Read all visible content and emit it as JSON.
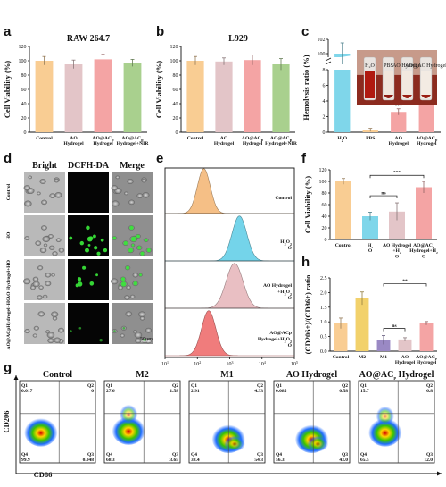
{
  "panels": {
    "a": {
      "label": "a",
      "chart_data": {
        "type": "bar",
        "title": "RAW 264.7",
        "ylabel": "Cell Viability (%)",
        "categories": [
          [
            "Control"
          ],
          [
            "AO",
            "Hydrogel"
          ],
          [
            "AO@AC",
            "Hydrogel"
          ],
          [
            "AO@AC",
            "Hydrogel+NIR"
          ]
        ],
        "values": [
          100,
          95,
          102,
          97
        ],
        "errors": [
          6,
          6,
          7,
          5
        ],
        "ylim": [
          0,
          120
        ],
        "yticks": [
          "0",
          "20",
          "40",
          "60",
          "80",
          "100",
          "120"
        ],
        "colors": [
          "#f9cd93",
          "#e3c5c8",
          "#f4a4a4",
          "#a9d08e"
        ]
      }
    },
    "b": {
      "label": "b",
      "chart_data": {
        "type": "bar",
        "title": "L929",
        "ylabel": "Cell Viability (%)",
        "categories": [
          [
            "Control"
          ],
          [
            "AO",
            "Hydrogel"
          ],
          [
            "AO@AC",
            "Hydrogel"
          ],
          [
            "AO@AC",
            "Hydrogel+NIR"
          ]
        ],
        "values": [
          100,
          99,
          101,
          95
        ],
        "errors": [
          6,
          5,
          7,
          8
        ],
        "ylim": [
          0,
          120
        ],
        "yticks": [
          "0",
          "20",
          "40",
          "60",
          "80",
          "100",
          "120"
        ],
        "colors": [
          "#f9cd93",
          "#e3c5c8",
          "#f4a4a4",
          "#a9d08e"
        ]
      }
    },
    "c": {
      "label": "c",
      "chart_data": {
        "type": "bar",
        "ylabel": "Hemolysis ratio (%)",
        "categories": [
          [
            "H",
            "O"
          ],
          [
            "PBS"
          ],
          [
            "AO",
            "Hydrogel"
          ],
          [
            "AO@AC",
            "Hydrogel"
          ]
        ],
        "values": [
          100,
          0.3,
          2.6,
          4.2
        ],
        "errors": [
          1.5,
          0.2,
          0.4,
          0.6
        ],
        "yticks": [
          "0",
          "2",
          "4",
          "6",
          "8",
          "100",
          "102"
        ],
        "significance": [
          "",
          "",
          "***",
          "***"
        ],
        "colors": [
          "#7fd6ea",
          "#f9cd93",
          "#f4a4a4",
          "#f4a4a4"
        ],
        "inset_labels": [
          "H₂O",
          "PBS",
          "AO Hydrogel",
          "AO@AC Hydrogel"
        ]
      }
    },
    "d": {
      "label": "d",
      "columns": [
        "Bright",
        "DCFH-DA",
        "Merge"
      ],
      "rows": [
        [
          "Control"
        ],
        [
          "H",
          "O"
        ],
        [
          "AO Hydrogel",
          "+H",
          "O"
        ],
        [
          "AO@ACp",
          "Hydrogel+H",
          "O"
        ]
      ],
      "scale_bar": "50μm"
    },
    "e": {
      "label": "e",
      "chart_data": {
        "type": "area",
        "x_ticks": [
          "10",
          "10",
          "10",
          "10",
          "10"
        ],
        "x_exponents": [
          "1",
          "2",
          "3",
          "4",
          "5"
        ],
        "series": [
          {
            "name": "Control",
            "color": "#f4b97a",
            "peak_log": 2.2,
            "width": 0.2
          },
          {
            "name": "H₂O₂",
            "color": "#65d0e8",
            "peak_log": 3.3,
            "width": 0.23
          },
          {
            "name": "AO Hydrogel\n+H₂O₂",
            "color": "#e7b9bd",
            "peak_log": 3.15,
            "width": 0.26
          },
          {
            "name": "AO@ACp\nHydrogel+H₂O₂",
            "color": "#ef6e6e",
            "peak_log": 2.35,
            "width": 0.22
          }
        ],
        "curve_labels": [
          [
            "Control"
          ],
          [
            "H",
            "O"
          ],
          [
            "AO Hydrogel",
            "+H",
            "O"
          ],
          [
            "AO@ACp",
            "Hydrogel+H",
            "O"
          ]
        ]
      }
    },
    "f": {
      "label": "f",
      "chart_data": {
        "type": "bar",
        "ylabel": "Cell Viability (%)",
        "categories": [
          [
            "Control"
          ],
          [
            "H",
            "O"
          ],
          [
            "AO Hydrogel",
            "+H",
            "O"
          ],
          [
            "AO@AC",
            "Hydrogel+H",
            "O"
          ]
        ],
        "values": [
          100,
          40,
          48,
          90
        ],
        "errors": [
          5,
          7,
          15,
          10
        ],
        "ylim": [
          0,
          120
        ],
        "yticks": [
          "0",
          "20",
          "40",
          "60",
          "80",
          "100",
          "120"
        ],
        "significance": [
          {
            "from": 1,
            "to": 3,
            "text": "***"
          },
          {
            "from": 1,
            "to": 2,
            "text": "ns"
          }
        ],
        "colors": [
          "#f9cd93",
          "#7fd6ea",
          "#e3c5c8",
          "#f4a4a4"
        ]
      }
    },
    "g": {
      "label": "g",
      "ylabel": "CD206",
      "xlabel": "CD86",
      "plots": [
        {
          "title": "Control",
          "q1": "0.017",
          "q2": "0",
          "q3": "0.048",
          "q4": "99.9"
        },
        {
          "title": "M2",
          "q1": "27.6",
          "q2": "1.58",
          "q3": "3.65",
          "q4": "68.3"
        },
        {
          "title": "M1",
          "q1": "2.91",
          "q2": "4.33",
          "q3": "54.3",
          "q4": "38.4"
        },
        {
          "title": "AO  Hydrogel",
          "q1": "0.085",
          "q2": "0.58",
          "q3": "43.0",
          "q4": "56.3"
        },
        {
          "title": "AO@AC",
          "title_sub": "P",
          "title_end": " Hydrogel",
          "q1": "15.7",
          "q2": "6.8",
          "q3": "12.0",
          "q4": "65.5"
        }
      ],
      "quadrant_names": [
        "Q1",
        "Q2",
        "Q3",
        "Q4"
      ]
    },
    "h": {
      "label": "h",
      "chart_data": {
        "type": "bar",
        "ylabel": "(CD206+)/(CD86+) ratio",
        "categories": [
          [
            "Control"
          ],
          [
            "M2"
          ],
          [
            "M1"
          ],
          [
            "AO",
            "Hydrogel"
          ],
          [
            "AO@AC",
            "Hydrogel"
          ]
        ],
        "values": [
          0.95,
          1.8,
          0.38,
          0.4,
          0.95
        ],
        "errors": [
          0.18,
          0.22,
          0.15,
          0.06,
          0.06
        ],
        "ylim": [
          0,
          2.5
        ],
        "yticks": [
          "0.0",
          "0.5",
          "1.0",
          "1.5",
          "2.0",
          "2.5"
        ],
        "significance": [
          {
            "from": 2,
            "to": 4,
            "text": "**"
          },
          {
            "from": 2,
            "to": 3,
            "text": "ns"
          }
        ],
        "colors": [
          "#f9cd93",
          "#f2d16b",
          "#9a89c4",
          "#e3c5c8",
          "#f4a4a4"
        ]
      }
    }
  },
  "subscript_p": "P",
  "subscript_2": "2",
  "star3": "***",
  "star2": "**",
  "ns": "ns"
}
